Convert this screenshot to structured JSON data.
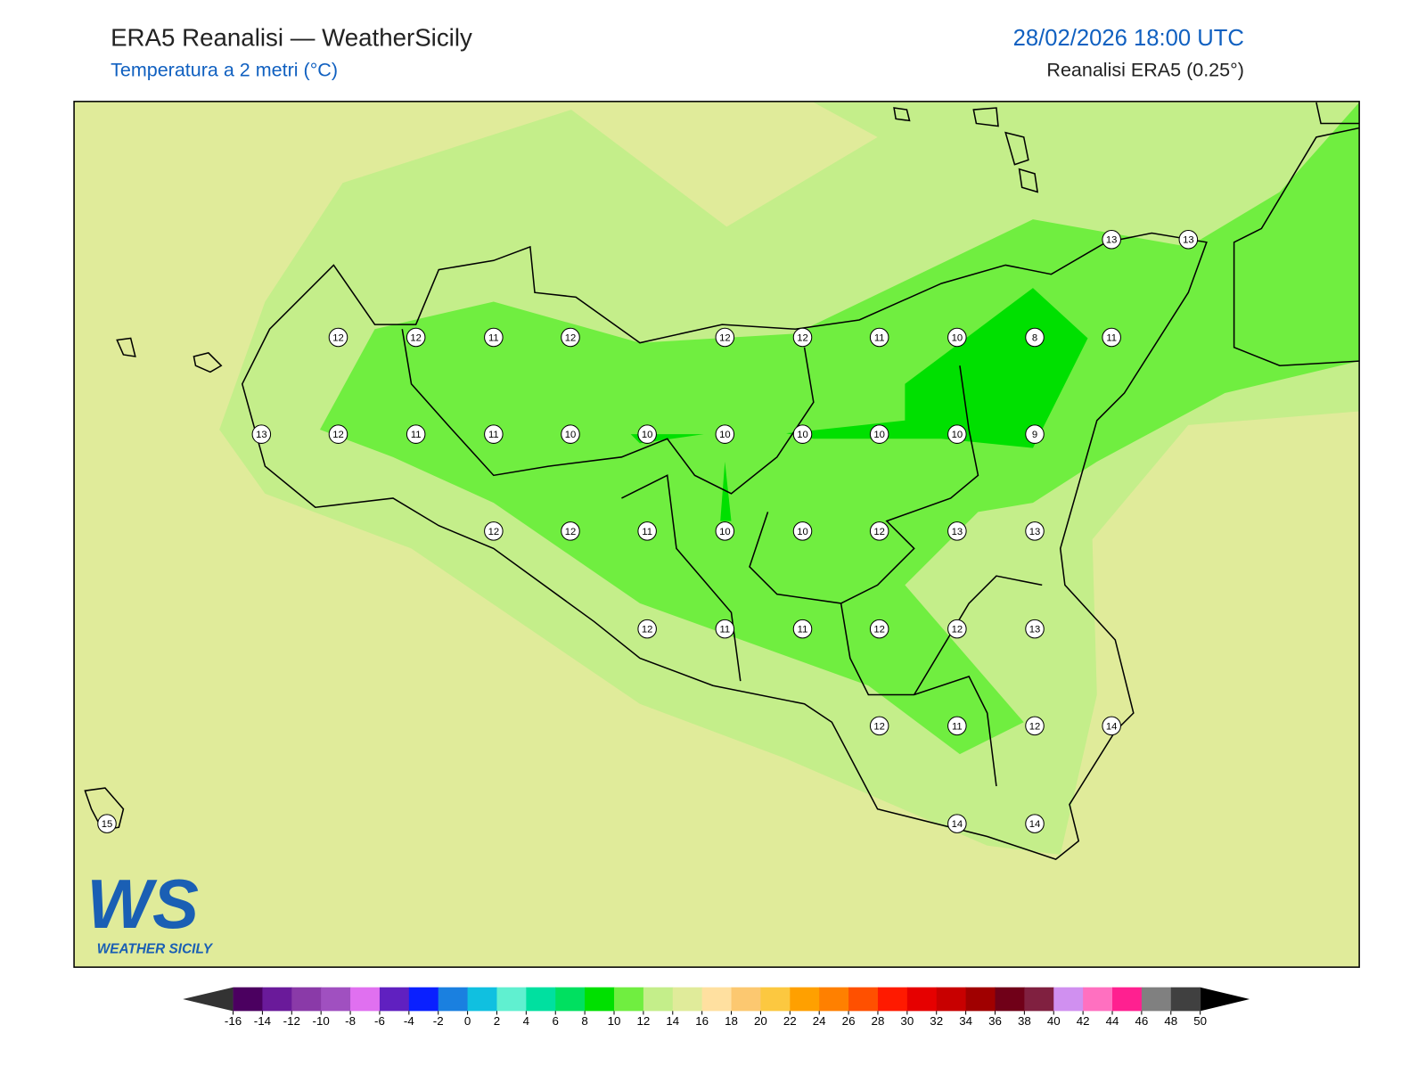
{
  "header": {
    "title": "ERA5 Reanalisi — WeatherSicily",
    "subtitle": "Temperatura a 2 metri (°C)",
    "datetime": "28/02/2026 18:00 UTC",
    "source": "Reanalisi ERA5 (0.25°)"
  },
  "logo": {
    "mark": "WS",
    "name": "WEATHER SICILY"
  },
  "stations": [
    12,
    12,
    11,
    12,
    12,
    12,
    11,
    10,
    8,
    11,
    13,
    13,
    13,
    12,
    11,
    11,
    10,
    10,
    10,
    10,
    10,
    10,
    9,
    12,
    12,
    11,
    10,
    10,
    12,
    13,
    13,
    12,
    11,
    11,
    12,
    12,
    13,
    12,
    11,
    12,
    14,
    15,
    14,
    14
  ],
  "colorbar": {
    "ticks": [
      -16,
      -14,
      -12,
      -10,
      -8,
      -6,
      -4,
      -2,
      0,
      2,
      4,
      6,
      8,
      10,
      12,
      14,
      16,
      18,
      20,
      22,
      24,
      26,
      28,
      30,
      32,
      34,
      36,
      38,
      40,
      42,
      44,
      46,
      48,
      50
    ],
    "colors": [
      "#4b0060",
      "#6a1a9a",
      "#8a3aa8",
      "#a050c0",
      "#e070f0",
      "#6020c0",
      "#0a20ff",
      "#1a80e0",
      "#10c0e0",
      "#60f0d0",
      "#00e0a0",
      "#00e060",
      "#00e000",
      "#70ee40",
      "#c4ee8a",
      "#e0eb9a",
      "#ffe0a0",
      "#fcc870",
      "#fcc840",
      "#ffa000",
      "#ff8000",
      "#ff5000",
      "#ff1a00",
      "#e60000",
      "#c80000",
      "#a00000",
      "#700018",
      "#802040",
      "#d090f0",
      "#ff70c0",
      "#ff2090",
      "#808080",
      "#404040"
    ],
    "under_color": "#333333",
    "over_color": "#000000"
  }
}
